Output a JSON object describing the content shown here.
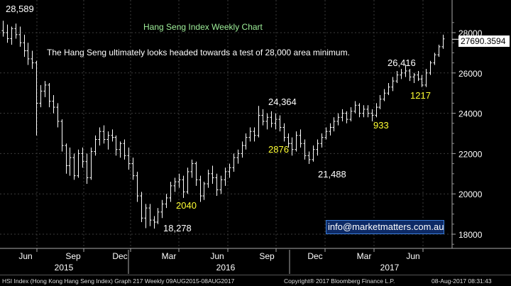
{
  "title": "Hang Seng Index Weekly Chart",
  "comment": "The Hang Seng ultimately looks headed towards a test of 28,000 area minimum.",
  "last_price": "27690.3594",
  "contact": "info@marketmatters.com.au",
  "footer": {
    "left": "HSI Index (Hong Kong Hang Seng Index) Graph 217  Weekly 09AUG2015-08AUG2017",
    "center": "Copyright® 2017 Bloomberg Finance L.P.",
    "right": "08-Aug-2017 08:31:43"
  },
  "colors": {
    "background": "#000000",
    "bars": "#ffffff",
    "title": "#9ff09a",
    "swing_label": "#ffff33",
    "level_label": "#ffffff"
  },
  "chart_data": {
    "type": "ohlc",
    "frequency": "weekly",
    "ylim": [
      17200,
      28900
    ],
    "y_ticks": [
      18000,
      20000,
      22000,
      24000,
      26000,
      28000
    ],
    "y_tick_labels": [
      "18000",
      "20000",
      "22000",
      "24000",
      "26000",
      "28000"
    ],
    "x_ticks": [
      "Jun",
      "Sep",
      "Dec",
      "Mar",
      "Jun",
      "Sep",
      "Dec",
      "Mar",
      "Jun"
    ],
    "x_year_labels": [
      "2015",
      "2016",
      "2017"
    ],
    "grid": true,
    "annotations_levels": [
      {
        "label": "28,589",
        "value": 28589
      },
      {
        "label": "18,278",
        "value": 18278
      },
      {
        "label": "24,364",
        "value": 24364
      },
      {
        "label": "21,488",
        "value": 21488
      },
      {
        "label": "26,416",
        "value": 26416
      }
    ],
    "annotations_swings": [
      {
        "label": "2040"
      },
      {
        "label": "2876"
      },
      {
        "label": "933"
      },
      {
        "label": "1217"
      }
    ],
    "bars": [
      [
        28100,
        28589,
        27800,
        28000
      ],
      [
        28000,
        28400,
        27500,
        27700
      ],
      [
        27700,
        28300,
        27400,
        28200
      ],
      [
        28200,
        28450,
        27700,
        27900
      ],
      [
        27900,
        28300,
        27300,
        27500
      ],
      [
        27500,
        27900,
        26800,
        27100
      ],
      [
        27100,
        27500,
        26400,
        26700
      ],
      [
        26700,
        27100,
        26200,
        26500
      ],
      [
        26500,
        26600,
        22900,
        24500
      ],
      [
        24500,
        25400,
        24300,
        25100
      ],
      [
        25100,
        25600,
        24800,
        25400
      ],
      [
        25400,
        25500,
        24300,
        24600
      ],
      [
        24600,
        24900,
        24000,
        24300
      ],
      [
        24300,
        24500,
        23300,
        23600
      ],
      [
        23600,
        23700,
        22100,
        22400
      ],
      [
        22400,
        22500,
        21000,
        21400
      ],
      [
        21400,
        22300,
        20900,
        21800
      ],
      [
        21800,
        22000,
        20700,
        20900
      ],
      [
        20900,
        22200,
        20800,
        22000
      ],
      [
        22000,
        22300,
        21300,
        21600
      ],
      [
        21600,
        22000,
        20500,
        20800
      ],
      [
        20800,
        22300,
        20700,
        22100
      ],
      [
        22100,
        22900,
        21900,
        22700
      ],
      [
        22700,
        23300,
        22400,
        23100
      ],
      [
        23100,
        23400,
        22500,
        22700
      ],
      [
        22700,
        23100,
        22200,
        22900
      ],
      [
        22900,
        23200,
        22600,
        22800
      ],
      [
        22800,
        22900,
        21900,
        22200
      ],
      [
        22200,
        22600,
        21800,
        22500
      ],
      [
        22500,
        22700,
        21700,
        21900
      ],
      [
        21900,
        22300,
        21200,
        21500
      ],
      [
        21500,
        21800,
        20700,
        20900
      ],
      [
        20900,
        21100,
        19600,
        19900
      ],
      [
        19900,
        20100,
        18600,
        18800
      ],
      [
        18800,
        19500,
        18300,
        19300
      ],
      [
        19300,
        19500,
        18400,
        18700
      ],
      [
        18700,
        18900,
        18278,
        18600
      ],
      [
        18600,
        19300,
        18500,
        19100
      ],
      [
        19100,
        19700,
        18800,
        19500
      ],
      [
        19500,
        20000,
        19300,
        19800
      ],
      [
        19800,
        20600,
        19600,
        20400
      ],
      [
        20400,
        20800,
        20100,
        20600
      ],
      [
        20600,
        21000,
        20300,
        20700
      ],
      [
        20700,
        20900,
        19800,
        20100
      ],
      [
        20100,
        21300,
        20000,
        21100
      ],
      [
        21100,
        21700,
        20800,
        21500
      ],
      [
        21500,
        21600,
        20400,
        20700
      ],
      [
        20700,
        20900,
        19600,
        19900
      ],
      [
        19900,
        20600,
        19700,
        20500
      ],
      [
        20500,
        21200,
        20300,
        21000
      ],
      [
        21000,
        21400,
        20500,
        20800
      ],
      [
        20800,
        21000,
        19900,
        20200
      ],
      [
        20200,
        20900,
        20000,
        20700
      ],
      [
        20700,
        21300,
        20400,
        21100
      ],
      [
        21100,
        21500,
        20800,
        21300
      ],
      [
        21300,
        22000,
        21100,
        21800
      ],
      [
        21800,
        22200,
        21500,
        22000
      ],
      [
        22000,
        22600,
        21800,
        22400
      ],
      [
        22400,
        23000,
        22200,
        22800
      ],
      [
        22800,
        23300,
        22600,
        23100
      ],
      [
        23100,
        23300,
        22600,
        22900
      ],
      [
        22900,
        24364,
        22800,
        23900
      ],
      [
        23900,
        24200,
        23400,
        23600
      ],
      [
        23600,
        24000,
        23200,
        23800
      ],
      [
        23800,
        24100,
        23300,
        23500
      ],
      [
        23500,
        24000,
        23200,
        23700
      ],
      [
        23700,
        23900,
        23100,
        23300
      ],
      [
        23300,
        23500,
        22600,
        22800
      ],
      [
        22800,
        23000,
        22300,
        22500
      ],
      [
        22500,
        22800,
        21900,
        22200
      ],
      [
        22200,
        23100,
        22100,
        22900
      ],
      [
        22900,
        23200,
        22300,
        22500
      ],
      [
        22500,
        22700,
        21700,
        21900
      ],
      [
        21900,
        22100,
        21488,
        21700
      ],
      [
        21700,
        22400,
        21600,
        22200
      ],
      [
        22200,
        22700,
        21900,
        22500
      ],
      [
        22500,
        23000,
        22300,
        22800
      ],
      [
        22800,
        23300,
        22700,
        23100
      ],
      [
        23100,
        23500,
        22900,
        23300
      ],
      [
        23300,
        23800,
        23100,
        23600
      ],
      [
        23600,
        24000,
        23400,
        23800
      ],
      [
        23800,
        24200,
        23600,
        24000
      ],
      [
        24000,
        24100,
        23500,
        23700
      ],
      [
        23700,
        24300,
        23600,
        24100
      ],
      [
        24100,
        24600,
        24000,
        24400
      ],
      [
        24400,
        24500,
        23800,
        24000
      ],
      [
        24000,
        24400,
        23800,
        24200
      ],
      [
        24200,
        24400,
        23800,
        24000
      ],
      [
        24000,
        24200,
        23600,
        23900
      ],
      [
        23900,
        24500,
        23800,
        24300
      ],
      [
        24300,
        24900,
        24200,
        24700
      ],
      [
        24700,
        25200,
        24600,
        25000
      ],
      [
        25000,
        25500,
        24900,
        25300
      ],
      [
        25300,
        25800,
        25100,
        25600
      ],
      [
        25600,
        26100,
        25500,
        25900
      ],
      [
        25900,
        26200,
        25700,
        26000
      ],
      [
        26000,
        26416,
        25800,
        26100
      ],
      [
        26100,
        26200,
        25600,
        25800
      ],
      [
        25800,
        26000,
        25500,
        25900
      ],
      [
        25900,
        26100,
        25600,
        25700
      ],
      [
        25700,
        25900,
        25300,
        25400
      ],
      [
        25400,
        26200,
        25300,
        26000
      ],
      [
        26000,
        26600,
        25900,
        26500
      ],
      [
        26500,
        27000,
        26400,
        26900
      ],
      [
        26900,
        27400,
        26800,
        27300
      ],
      [
        27300,
        27900,
        27200,
        27690
      ]
    ]
  }
}
